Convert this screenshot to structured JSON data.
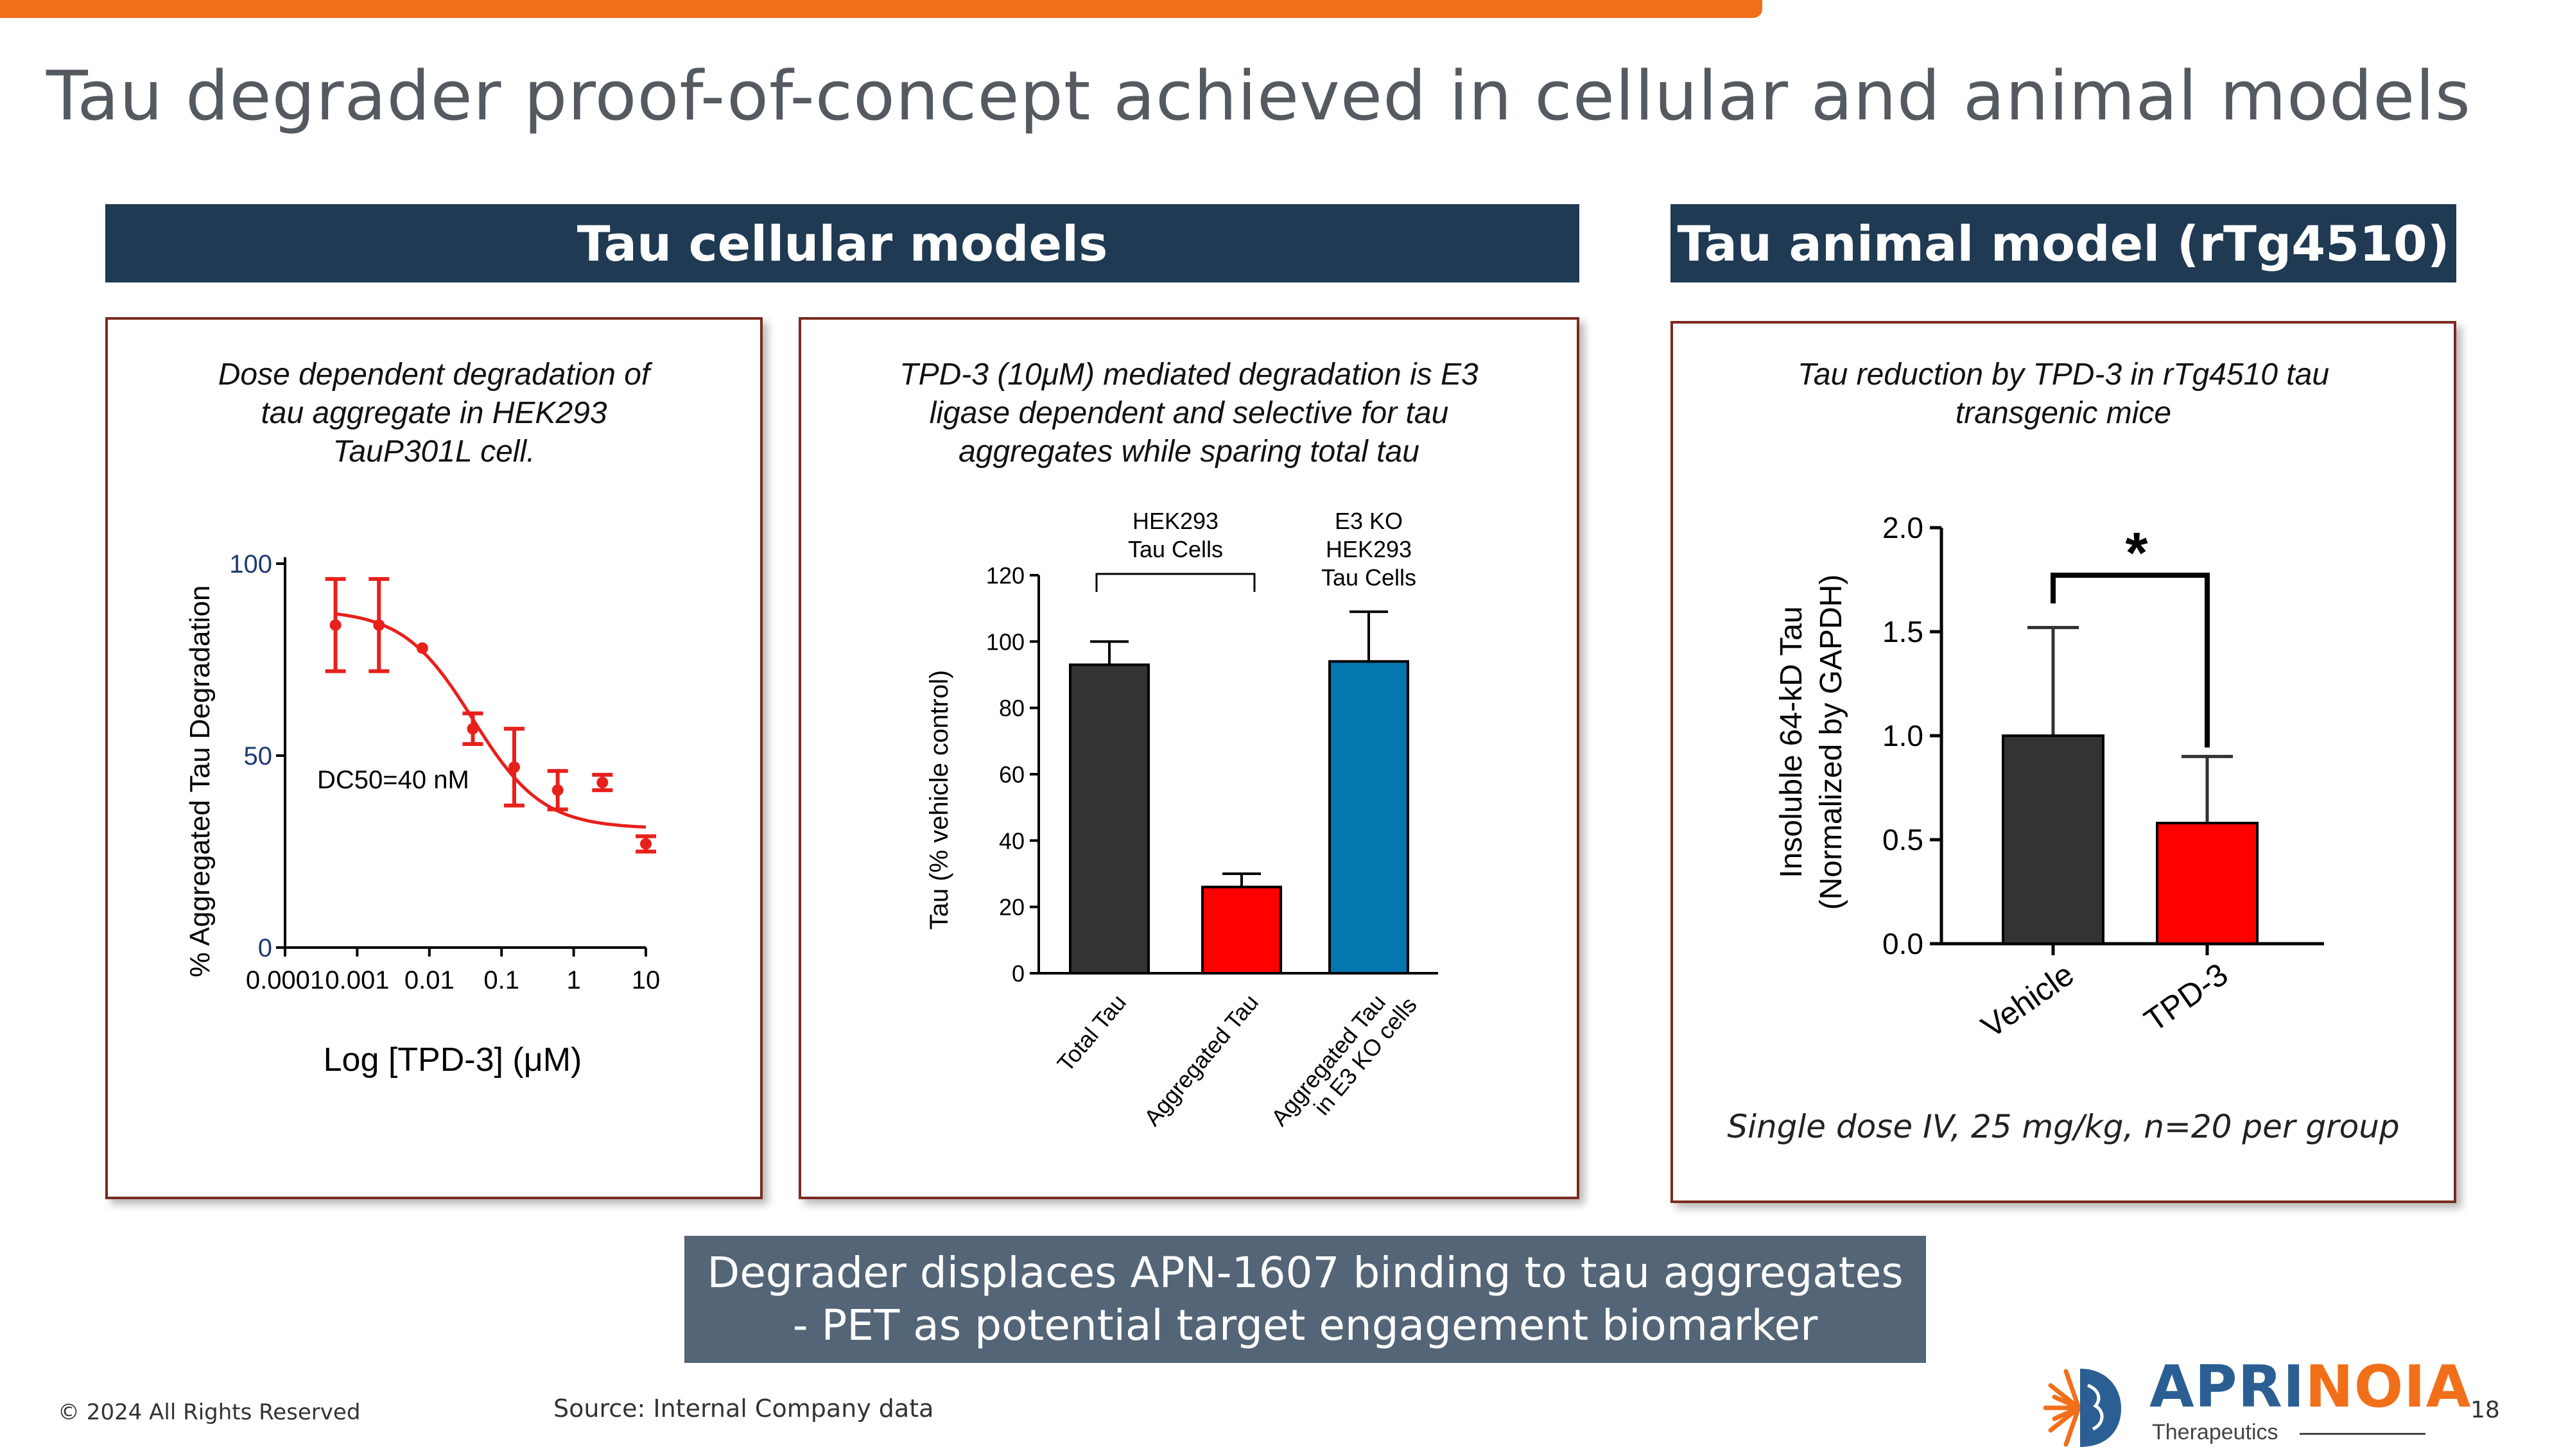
{
  "slide": {
    "title": "Tau degrader proof-of-concept achieved in cellular and animal models",
    "section_cellular": "Tau cellular models",
    "section_animal": "Tau animal model (rTg4510)",
    "panel1_caption": [
      "Dose dependent degradation of",
      "tau aggregate in HEK293",
      "TauP301L cell."
    ],
    "panel2_caption": [
      "TPD-3 (10μM) mediated degradation is E3",
      "ligase dependent and selective for tau",
      "aggregates while sparing total  tau"
    ],
    "panel3_caption": [
      "Tau reduction by TPD-3 in rTg4510 tau",
      "transgenic mice"
    ],
    "panel3_note": "Single dose IV, 25 mg/kg, n=20 per group",
    "bottom_box": [
      "Degrader displaces APN-1607 binding to tau aggregates",
      "- PET as potential target engagement biomarker"
    ],
    "copyright": "© 2024 All Rights Reserved",
    "source": "Source: Internal Company data",
    "logo_main_a": "APRI",
    "logo_main_b": "NOIA",
    "logo_sub": "Therapeutics",
    "page_number": "18"
  },
  "chart_data": [
    {
      "type": "scatter",
      "ylabel": "% Aggregated Tau Degradation",
      "xlabel": "Log [TPD-3] (μM)",
      "xscale": "log",
      "xlim": [
        0.0001,
        10
      ],
      "ylim": [
        0,
        100
      ],
      "xticks": [
        0.0001,
        0.001,
        0.01,
        0.1,
        1,
        10
      ],
      "xtick_labels": [
        "0.0001",
        "0.001",
        "0.01",
        "0.1",
        "1",
        "10"
      ],
      "yticks": [
        0,
        50,
        100
      ],
      "yticks_labels": [
        "0",
        "50",
        "100"
      ],
      "annotation": "DC50=40 nM",
      "color": "#e8201c",
      "points": [
        {
          "x": 0.0005,
          "y": 84,
          "err": 12
        },
        {
          "x": 0.002,
          "y": 84,
          "err": 12
        },
        {
          "x": 0.008,
          "y": 78,
          "err": 0
        },
        {
          "x": 0.04,
          "y": 57,
          "err": 4
        },
        {
          "x": 0.15,
          "y": 47,
          "err": 10
        },
        {
          "x": 0.6,
          "y": 41,
          "err": 5
        },
        {
          "x": 2.5,
          "y": 43,
          "err": 2
        },
        {
          "x": 10,
          "y": 27,
          "err": 2
        }
      ],
      "fit": {
        "bottom": 31,
        "top": 88,
        "ec50": 0.04,
        "hill": 0.9
      }
    },
    {
      "type": "bar",
      "ylabel": "Tau (% vehicle control)",
      "ylim": [
        0,
        120
      ],
      "yticks": [
        0,
        20,
        40,
        60,
        80,
        100,
        120
      ],
      "yticks_labels": [
        "0",
        "20",
        "40",
        "60",
        "80",
        "100",
        "120"
      ],
      "categories": [
        "Total Tau",
        "Aggregated Tau",
        "Aggregated Tau\nin E3 KO cells"
      ],
      "values": [
        93,
        26,
        94
      ],
      "errors": [
        7,
        4,
        15
      ],
      "colors": [
        "#333333",
        "#ff0000",
        "#0476b0"
      ],
      "bracket_label": [
        "HEK293",
        "Tau Cells"
      ],
      "group_label": [
        "E3 KO",
        "HEK293",
        "Tau Cells"
      ]
    },
    {
      "type": "bar",
      "ylabel": [
        "Insoluble 64-kD Tau",
        "(Normalized by GAPDH)"
      ],
      "ylim": [
        0,
        2.0
      ],
      "yticks": [
        0,
        0.5,
        1.0,
        1.5,
        2.0
      ],
      "yticks_labels": [
        "0.0",
        "0.5",
        "1.0",
        "1.5",
        "2.0"
      ],
      "categories": [
        "Vehicle",
        "TPD-3"
      ],
      "values": [
        1.0,
        0.58
      ],
      "errors": [
        0.52,
        0.32
      ],
      "colors": [
        "#333333",
        "#ff0000"
      ],
      "significance": "*"
    }
  ]
}
